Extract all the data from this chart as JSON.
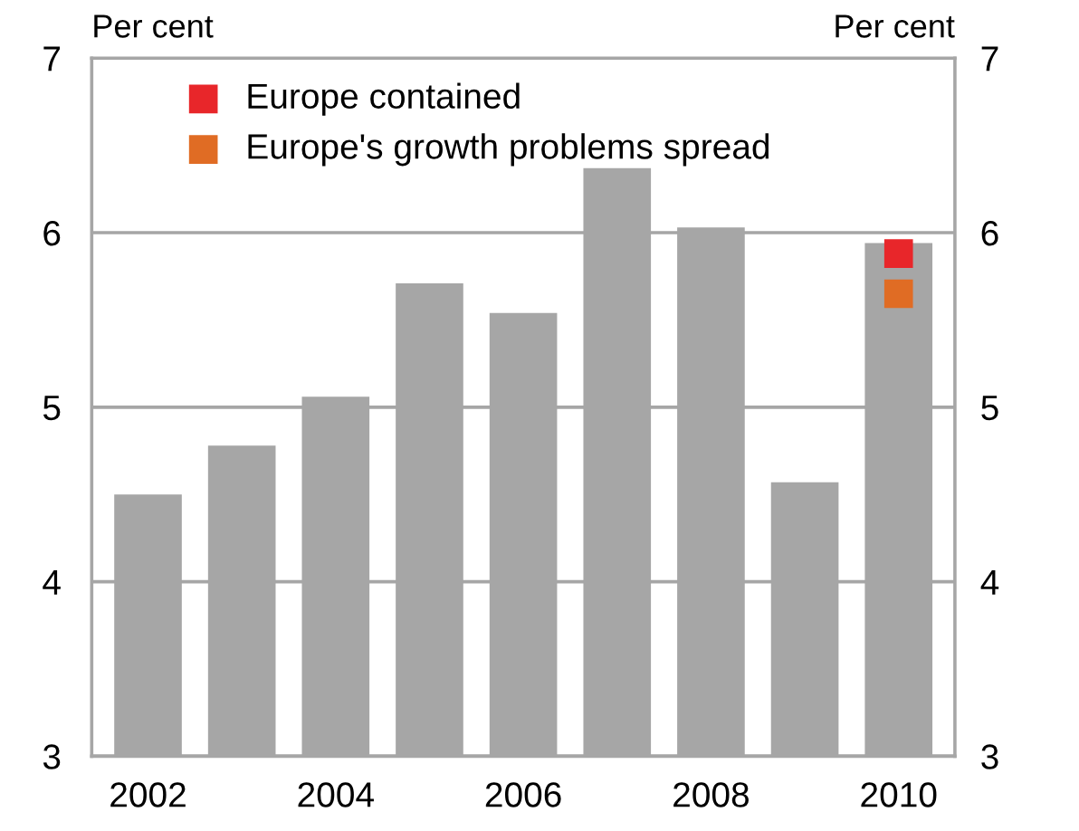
{
  "chart_data": {
    "type": "bar",
    "ylabel": "Per cent",
    "y2label": "Per cent",
    "categories": [
      "2002",
      null,
      "2004",
      null,
      "2006",
      null,
      "2008",
      null,
      "2010"
    ],
    "series": [
      {
        "color": "#a6a6a6",
        "values": [
          4.5,
          4.78,
          5.06,
          5.71,
          5.54,
          6.37,
          6.03,
          4.57,
          5.94
        ]
      },
      {
        "type": "scatter",
        "name": "Europe contained",
        "color": "#e8262a",
        "values": [
          null,
          null,
          null,
          null,
          null,
          null,
          null,
          null,
          5.88
        ]
      },
      {
        "type": "scatter",
        "name": "Europe's growth problems spread",
        "color": "#e06c24",
        "values": [
          null,
          null,
          null,
          null,
          null,
          null,
          null,
          null,
          5.65
        ]
      }
    ],
    "ylim": [
      3,
      7
    ],
    "yticks": [
      3,
      4,
      5,
      6,
      7
    ],
    "y2lim": [
      3,
      7
    ],
    "y2ticks": [
      3,
      4,
      5,
      6,
      7
    ],
    "grid": "y",
    "legend": "top left",
    "marker": "square"
  }
}
